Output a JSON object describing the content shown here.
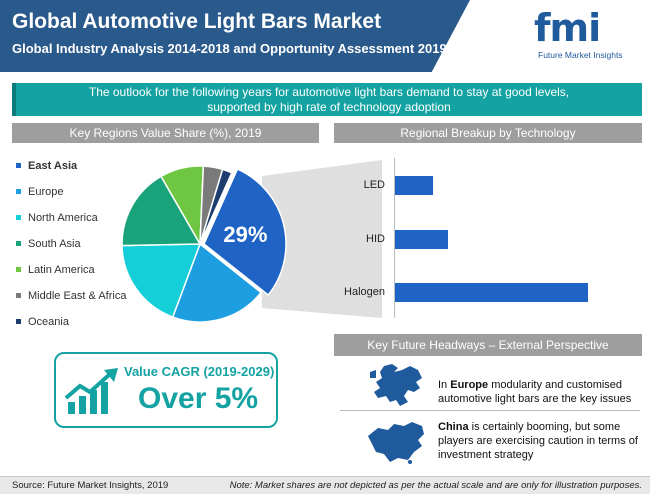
{
  "header": {
    "title": "Global Automotive Light Bars Market",
    "subtitle": "Global Industry Analysis 2014-2018  and  Opportunity Assessment 2019-2029"
  },
  "logo": {
    "mark": "fmi",
    "name": "Future Market Insights"
  },
  "banner": {
    "line1": "The outlook for the following years for automotive light bars demand to stay at good levels,",
    "line2": "supported by high rate of technology adoption"
  },
  "sections": {
    "left_title": "Key Regions Value Share (%), 2019",
    "right_title": "Regional Breakup by Technology",
    "future_title": "Key Future Headways – External Perspective"
  },
  "chart_data": [
    {
      "type": "pie",
      "title": "Key Regions Value Share (%), 2019",
      "highlight_label": "29%",
      "slices": [
        {
          "name": "East Asia",
          "value": 29,
          "color": "#1f63c5"
        },
        {
          "name": "Europe",
          "value": 20,
          "color": "#1c9ee0"
        },
        {
          "name": "North America",
          "value": 19,
          "color": "#14cfd8"
        },
        {
          "name": "South Asia",
          "value": 17,
          "color": "#1aa37a"
        },
        {
          "name": "Latin America",
          "value": 9,
          "color": "#6ec643"
        },
        {
          "name": "Middle East & Africa",
          "value": 4,
          "color": "#7a7a7a"
        },
        {
          "name": "Oceania",
          "value": 2,
          "color": "#1c3d6e"
        }
      ]
    },
    {
      "type": "bar",
      "orientation": "horizontal",
      "title": "Regional Breakup by Technology",
      "categories": [
        "LED",
        "HID",
        "Halogen"
      ],
      "values": [
        15,
        21,
        77
      ],
      "max": 100,
      "color": "#1f63c5"
    }
  ],
  "cagr": {
    "label": "Value CAGR (2019-2029)",
    "value": "Over 5%"
  },
  "future": [
    {
      "bold": "Europe",
      "pre": "In ",
      "post": " modularity and customised automotive light bars are the key issues",
      "icon": "europe-map-icon"
    },
    {
      "bold": "China",
      "pre": "",
      "post": " is certainly booming, but some players are exercising caution in terms of investment strategy",
      "icon": "china-map-icon"
    }
  ],
  "footer": {
    "source": "Source: Future Market Insights, 2019",
    "note": "Note: Market shares are not depicted as per the actual scale and are only for illustration purposes."
  }
}
